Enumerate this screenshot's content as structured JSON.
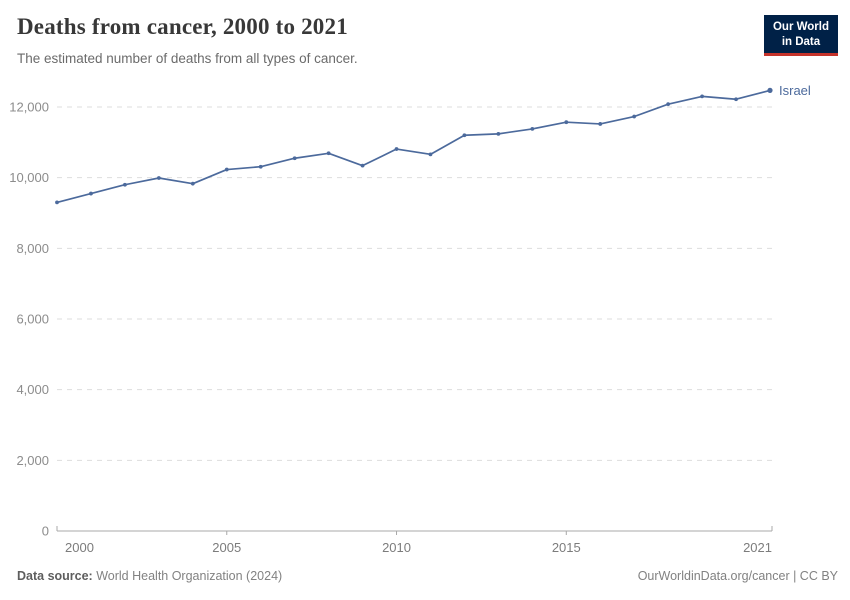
{
  "header": {
    "title": "Deaths from cancer, 2000 to 2021",
    "subtitle": "The estimated number of deaths from all types of cancer."
  },
  "logo": {
    "line1": "Our World",
    "line2": "in Data",
    "bg_color": "#002147",
    "accent_color": "#c5332b"
  },
  "chart_data": {
    "type": "line",
    "title": "Deaths from cancer, 2000 to 2021",
    "subtitle": "The estimated number of deaths from all types of cancer.",
    "xlabel": "",
    "ylabel": "",
    "x": [
      2000,
      2001,
      2002,
      2003,
      2004,
      2005,
      2006,
      2007,
      2008,
      2009,
      2010,
      2011,
      2012,
      2013,
      2014,
      2015,
      2016,
      2017,
      2018,
      2019,
      2020,
      2021
    ],
    "series": [
      {
        "name": "Israel",
        "color": "#4c6a9c",
        "values": [
          9300,
          9550,
          9800,
          9990,
          9830,
          10230,
          10310,
          10550,
          10690,
          10340,
          10810,
          10660,
          11200,
          11240,
          11380,
          11570,
          11520,
          11730,
          12080,
          12300,
          12220,
          12470
        ]
      }
    ],
    "ylim": [
      0,
      12000
    ],
    "yticks": [
      0,
      2000,
      4000,
      6000,
      8000,
      10000,
      12000
    ],
    "xticks": [
      2000,
      2005,
      2010,
      2015,
      2021
    ],
    "grid": "horizontal-dashed",
    "gridline_color": "#dddddd",
    "axis_color": "#a8a8a8",
    "ytick_label_color": "#8c8c8c",
    "xtick_label_color": "#7c7c7c",
    "legend_position": "end-of-line-label"
  },
  "footer": {
    "source_label": "Data source:",
    "source_value": "World Health Organization (2024)",
    "link": "OurWorldinData.org/cancer | CC BY"
  }
}
